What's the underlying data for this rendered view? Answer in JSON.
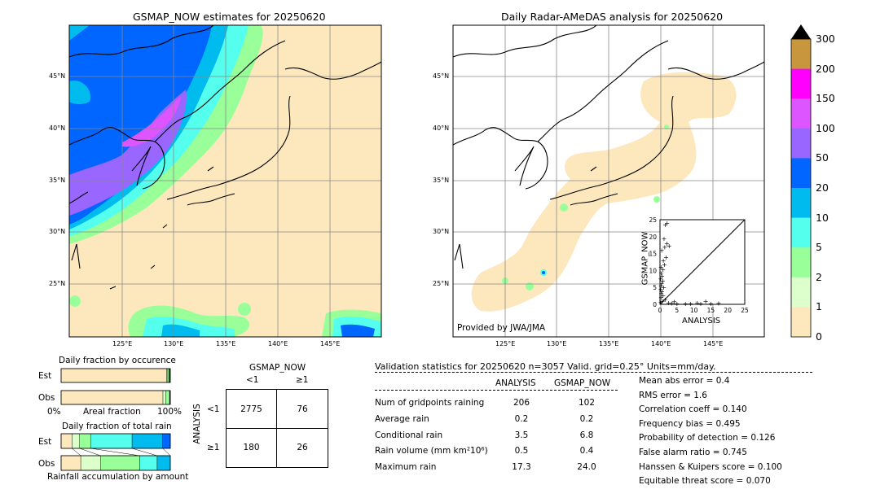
{
  "left_map": {
    "title": "GSMAP_NOW estimates for 20250620",
    "lat_labels": [
      "45°N",
      "40°N",
      "35°N",
      "30°N",
      "25°N"
    ],
    "lon_labels": [
      "125°E",
      "130°E",
      "135°E",
      "140°E",
      "145°E"
    ]
  },
  "right_map": {
    "title": "Daily Radar-AMeDAS analysis for 20250620",
    "lat_labels": [
      "45°N",
      "40°N",
      "35°N",
      "30°N",
      "25°N"
    ],
    "lon_labels": [
      "125°E",
      "130°E",
      "135°E",
      "140°E",
      "145°E"
    ],
    "credit": "Provided by JWA/JMA"
  },
  "colorbar": {
    "ticks": [
      "300",
      "200",
      "150",
      "100",
      "50",
      "20",
      "10",
      "5",
      "2",
      "1",
      "0"
    ],
    "colors": [
      "#c8963c",
      "#ff00ff",
      "#dd55ff",
      "#9966ff",
      "#0066ff",
      "#00bbee",
      "#55ffee",
      "#99ff99",
      "#ddffcc",
      "#fde8be"
    ],
    "extend_color": "#000000"
  },
  "chart_data": [
    {
      "type": "scatter",
      "name": "inset-scatter",
      "xlabel": "ANALYSIS",
      "ylabel": "GSMAP_NOW",
      "xlim": [
        0,
        25
      ],
      "ylim": [
        0,
        25
      ],
      "ticks": [
        "0",
        "5",
        "10",
        "15",
        "20",
        "25"
      ],
      "points": [
        [
          2.1,
          24.0
        ],
        [
          1.6,
          23.5
        ],
        [
          1.2,
          19.5
        ],
        [
          2.0,
          18.0
        ],
        [
          1.4,
          17.0
        ],
        [
          2.7,
          17.3
        ],
        [
          0.5,
          16.0
        ],
        [
          1.8,
          14.0
        ],
        [
          1.0,
          13.0
        ],
        [
          1.3,
          11.8
        ],
        [
          0.3,
          11.0
        ],
        [
          0.9,
          10.3
        ],
        [
          0.4,
          9.2
        ],
        [
          0.6,
          8.4
        ],
        [
          0.2,
          7.6
        ],
        [
          0.8,
          7.0
        ],
        [
          0.5,
          6.2
        ],
        [
          0.3,
          5.5
        ],
        [
          1.1,
          5.0
        ],
        [
          0.2,
          4.4
        ],
        [
          0.6,
          3.8
        ],
        [
          0.4,
          3.2
        ],
        [
          0.9,
          2.6
        ],
        [
          0.3,
          2.0
        ],
        [
          1.5,
          1.5
        ],
        [
          0.7,
          1.0
        ],
        [
          0.2,
          0.6
        ],
        [
          2.5,
          0.5
        ],
        [
          3.5,
          0.4
        ],
        [
          5.0,
          0.3
        ],
        [
          7.5,
          0.2
        ],
        [
          9.0,
          0.3
        ],
        [
          12.0,
          0.2
        ],
        [
          17.3,
          0.4
        ],
        [
          13.5,
          1.0
        ],
        [
          11.0,
          0.5
        ],
        [
          15.0,
          0.2
        ],
        [
          4.2,
          0.8
        ]
      ]
    },
    {
      "type": "bar",
      "name": "occurrence-fraction",
      "title": "Daily fraction by occurence",
      "xlabel": "Areal fraction",
      "xtick_left": "0%",
      "xtick_right": "100%",
      "rows": [
        {
          "label": "Est",
          "segments": [
            {
              "color": "#fde8be",
              "value": 0.967
            },
            {
              "color": "#ddffcc",
              "value": 0.01
            },
            {
              "color": "#99ff99",
              "value": 0.01
            },
            {
              "color": "#2c7a2c",
              "value": 0.013
            }
          ]
        },
        {
          "label": "Obs",
          "segments": [
            {
              "color": "#fde8be",
              "value": 0.933
            },
            {
              "color": "#ddffcc",
              "value": 0.025
            },
            {
              "color": "#99ff99",
              "value": 0.035
            },
            {
              "color": "#3a3a3a",
              "value": 0.007
            }
          ]
        }
      ]
    },
    {
      "type": "bar",
      "name": "total-rain-fraction",
      "title": "Daily fraction of total rain",
      "xlabel": "Rainfall accumulation by amount",
      "rows": [
        {
          "label": "Est",
          "segments": [
            {
              "color": "#fde8be",
              "value": 0.1
            },
            {
              "color": "#ddffcc",
              "value": 0.07
            },
            {
              "color": "#99ff99",
              "value": 0.1
            },
            {
              "color": "#55ffee",
              "value": 0.38
            },
            {
              "color": "#00bbee",
              "value": 0.28
            },
            {
              "color": "#0066ff",
              "value": 0.07
            }
          ]
        },
        {
          "label": "Obs",
          "segments": [
            {
              "color": "#fde8be",
              "value": 0.18
            },
            {
              "color": "#ddffcc",
              "value": 0.18
            },
            {
              "color": "#99ff99",
              "value": 0.36
            },
            {
              "color": "#55ffee",
              "value": 0.16
            },
            {
              "color": "#00bbee",
              "value": 0.12
            }
          ]
        }
      ]
    }
  ],
  "contingency": {
    "col_title": "GSMAP_NOW",
    "row_title": "ANALYSIS",
    "col_labels": [
      "<1",
      "≥1"
    ],
    "row_labels": [
      "<1",
      "≥1"
    ],
    "cells": [
      [
        "2775",
        "76"
      ],
      [
        "180",
        "26"
      ]
    ]
  },
  "validation": {
    "header": "Validation statistics for 20250620  n=3057 Valid. grid=0.25° Units=mm/day.",
    "col_analysis": "ANALYSIS",
    "col_gsmap": "GSMAP_NOW",
    "rows": [
      {
        "label": "Num of gridpoints raining",
        "analysis": "206",
        "gsmap": "102"
      },
      {
        "label": "Average rain",
        "analysis": "0.2",
        "gsmap": "0.2"
      },
      {
        "label": "Conditional rain",
        "analysis": "3.5",
        "gsmap": "6.8"
      },
      {
        "label": "Rain volume (mm km²10⁶)",
        "analysis": "0.5",
        "gsmap": "0.4"
      },
      {
        "label": "Maximum rain",
        "analysis": "17.3",
        "gsmap": "24.0"
      }
    ],
    "scores": [
      "Mean abs error =    0.4",
      "RMS error =    1.6",
      "Correlation coeff =  0.140",
      "Frequency bias =  0.495",
      "Probability of detection =  0.126",
      "False alarm ratio =  0.745",
      "Hanssen & Kuipers score =  0.100",
      "Equitable threat score =  0.070"
    ]
  }
}
